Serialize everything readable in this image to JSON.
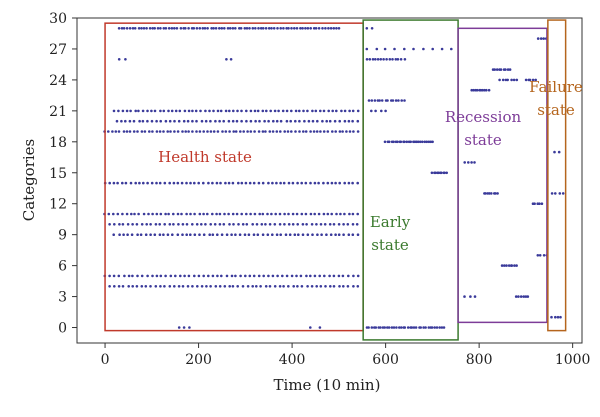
{
  "chart_data": {
    "type": "scatter",
    "title": "",
    "xlabel": "Time (10 min)",
    "ylabel": "Categories",
    "xlim": [
      -60,
      1020
    ],
    "ylim": [
      -1.5,
      30
    ],
    "xticks": [
      0,
      200,
      400,
      600,
      800,
      1000
    ],
    "yticks": [
      0,
      3,
      6,
      9,
      12,
      15,
      18,
      21,
      24,
      27,
      30
    ],
    "grid": false,
    "point_color": "#3a3a9a",
    "regions": [
      {
        "label": [
          "Health state"
        ],
        "x": [
          0,
          552
        ],
        "y": [
          -0.3,
          29.5
        ],
        "color": "#c0392b"
      },
      {
        "label": [
          "Early",
          "state"
        ],
        "x": [
          552,
          755
        ],
        "y": [
          -1.2,
          29.8
        ],
        "color": "#3b7a2e"
      },
      {
        "label": [
          "Recession",
          "state"
        ],
        "x": [
          755,
          945
        ],
        "y": [
          0.5,
          29
        ],
        "color": "#7d3c98"
      },
      {
        "label": [
          "Failure",
          "state"
        ],
        "x": [
          947,
          985
        ],
        "y": [
          -0.3,
          29.8
        ],
        "color": "#b5651d"
      }
    ],
    "segments": [
      {
        "x": [
          30,
          500
        ],
        "y": 29,
        "n": 80
      },
      {
        "x": [
          30,
          45
        ],
        "y": 26,
        "n": 2
      },
      {
        "x": [
          260,
          270
        ],
        "y": 26,
        "n": 2
      },
      {
        "x": [
          20,
          540
        ],
        "y": 21,
        "n": 60
      },
      {
        "x": [
          25,
          540
        ],
        "y": 20,
        "n": 55
      },
      {
        "x": [
          0,
          540
        ],
        "y": 19,
        "n": 70
      },
      {
        "x": [
          0,
          540
        ],
        "y": 14,
        "n": 60
      },
      {
        "x": [
          0,
          540
        ],
        "y": 11,
        "n": 60
      },
      {
        "x": [
          10,
          540
        ],
        "y": 10,
        "n": 55
      },
      {
        "x": [
          20,
          540
        ],
        "y": 9,
        "n": 55
      },
      {
        "x": [
          0,
          540
        ],
        "y": 5,
        "n": 55
      },
      {
        "x": [
          10,
          540
        ],
        "y": 4,
        "n": 55
      },
      {
        "x": [
          160,
          180
        ],
        "y": 0,
        "n": 3
      },
      {
        "x": [
          440,
          460
        ],
        "y": 0,
        "n": 2
      },
      {
        "x": [
          560,
          570
        ],
        "y": 29,
        "n": 2
      },
      {
        "x": [
          560,
          640
        ],
        "y": 26,
        "n": 14
      },
      {
        "x": [
          565,
          640
        ],
        "y": 22,
        "n": 14
      },
      {
        "x": [
          560,
          740
        ],
        "y": 27,
        "n": 10
      },
      {
        "x": [
          600,
          700
        ],
        "y": 18,
        "n": 25
      },
      {
        "x": [
          700,
          730
        ],
        "y": 15,
        "n": 10
      },
      {
        "x": [
          560,
          725
        ],
        "y": 0,
        "n": 35
      },
      {
        "x": [
          570,
          600
        ],
        "y": 21,
        "n": 4
      },
      {
        "x": [
          770,
          790
        ],
        "y": 16,
        "n": 4
      },
      {
        "x": [
          785,
          820
        ],
        "y": 23,
        "n": 10
      },
      {
        "x": [
          830,
          865
        ],
        "y": 25,
        "n": 9
      },
      {
        "x": [
          845,
          880
        ],
        "y": 24,
        "n": 7
      },
      {
        "x": [
          810,
          840
        ],
        "y": 13,
        "n": 8
      },
      {
        "x": [
          850,
          880
        ],
        "y": 6,
        "n": 8
      },
      {
        "x": [
          880,
          905
        ],
        "y": 3,
        "n": 6
      },
      {
        "x": [
          900,
          920
        ],
        "y": 24,
        "n": 5
      },
      {
        "x": [
          915,
          935
        ],
        "y": 12,
        "n": 5
      },
      {
        "x": [
          925,
          945
        ],
        "y": 7,
        "n": 4
      },
      {
        "x": [
          925,
          945
        ],
        "y": 28,
        "n": 4
      },
      {
        "x": [
          770,
          790
        ],
        "y": 3,
        "n": 3
      },
      {
        "x": [
          955,
          980
        ],
        "y": 13,
        "n": 4
      },
      {
        "x": [
          962,
          972
        ],
        "y": 17,
        "n": 2
      },
      {
        "x": [
          955,
          975
        ],
        "y": 1,
        "n": 4
      }
    ]
  }
}
